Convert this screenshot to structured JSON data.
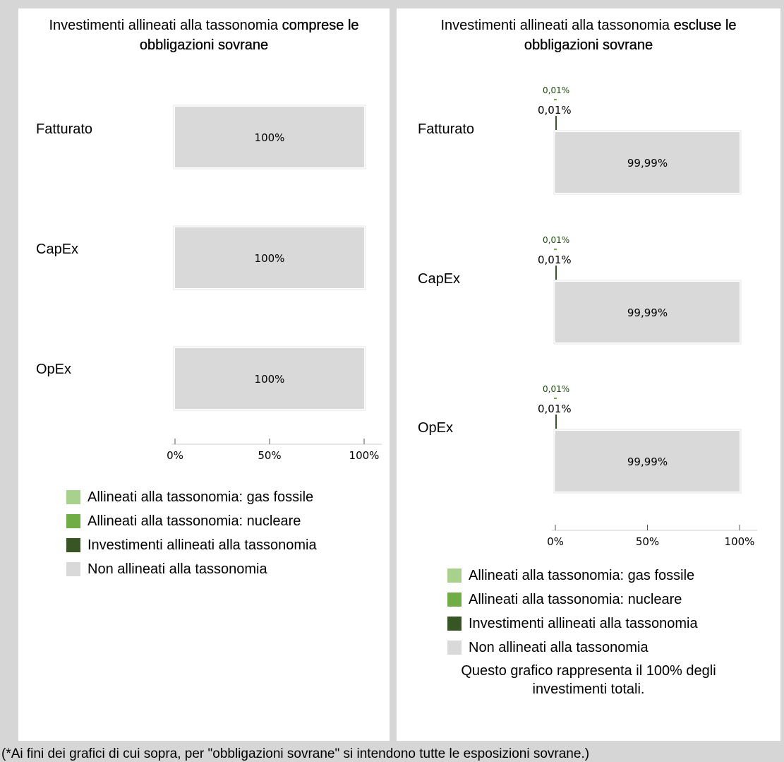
{
  "left_panel": {
    "title_plain": "Investimenti allineati alla tassonomia ",
    "title_bold": "comprese le obbligazioni sovrane"
  },
  "right_panel": {
    "title_plain": "Investimenti allineati alla tassonomia ",
    "title_bold": "escluse le obbligazioni sovrane",
    "note": "Questo grafico rappresenta il 100% degli investimenti totali."
  },
  "legend": [
    {
      "label": "Allineati alla tassonomia: gas fossile",
      "color": "#a9d18e"
    },
    {
      "label": "Allineati alla tassonomia: nucleare",
      "color": "#70ad47"
    },
    {
      "label": "Investimenti allineati alla tassonomia",
      "color": "#375623"
    },
    {
      "label": "Non allineati alla tassonomia",
      "color": "#d9d9d9"
    }
  ],
  "footnote": "(*Ai fini dei grafici di cui sopra, per \"obbligazioni sovrane\" si intendono tutte le esposizioni sovrane.)",
  "chart_data": [
    {
      "type": "bar",
      "orientation": "horizontal",
      "stacked": true,
      "categories": [
        "Fatturato",
        "CapEx",
        "OpEx"
      ],
      "series": [
        {
          "name": "Allineati alla tassonomia: gas fossile",
          "values": [
            0,
            0,
            0
          ]
        },
        {
          "name": "Allineati alla tassonomia: nucleare",
          "values": [
            0,
            0,
            0
          ]
        },
        {
          "name": "Investimenti allineati alla tassonomia",
          "values": [
            0,
            0,
            0
          ]
        },
        {
          "name": "Non allineati alla tassonomia",
          "values": [
            100,
            100,
            100
          ]
        }
      ],
      "data_labels": [
        {
          "main": "100%"
        },
        {
          "main": "100%"
        },
        {
          "main": "100%"
        }
      ],
      "xlim": [
        0,
        100
      ],
      "xticks": [
        "0%",
        "50%",
        "100%"
      ]
    },
    {
      "type": "bar",
      "orientation": "horizontal",
      "stacked": true,
      "categories": [
        "Fatturato",
        "CapEx",
        "OpEx"
      ],
      "series": [
        {
          "name": "Allineati alla tassonomia: gas fossile",
          "values": [
            0,
            0,
            0
          ]
        },
        {
          "name": "Allineati alla tassonomia: nucleare",
          "values": [
            0.01,
            0.01,
            0.01
          ]
        },
        {
          "name": "Investimenti allineati alla tassonomia",
          "values": [
            0.01,
            0.01,
            0.01
          ]
        },
        {
          "name": "Non allineati alla tassonomia",
          "values": [
            99.99,
            99.99,
            99.99
          ]
        }
      ],
      "data_labels": [
        {
          "small": "0,01%",
          "mid": "0,01%",
          "main": "99,99%"
        },
        {
          "small": "0,01%",
          "mid": "0,01%",
          "main": "99,99%"
        },
        {
          "small": "0,01%",
          "mid": "0,01%",
          "main": "99,99%"
        }
      ],
      "xlim": [
        0,
        100
      ],
      "xticks": [
        "0%",
        "50%",
        "100%"
      ]
    }
  ]
}
